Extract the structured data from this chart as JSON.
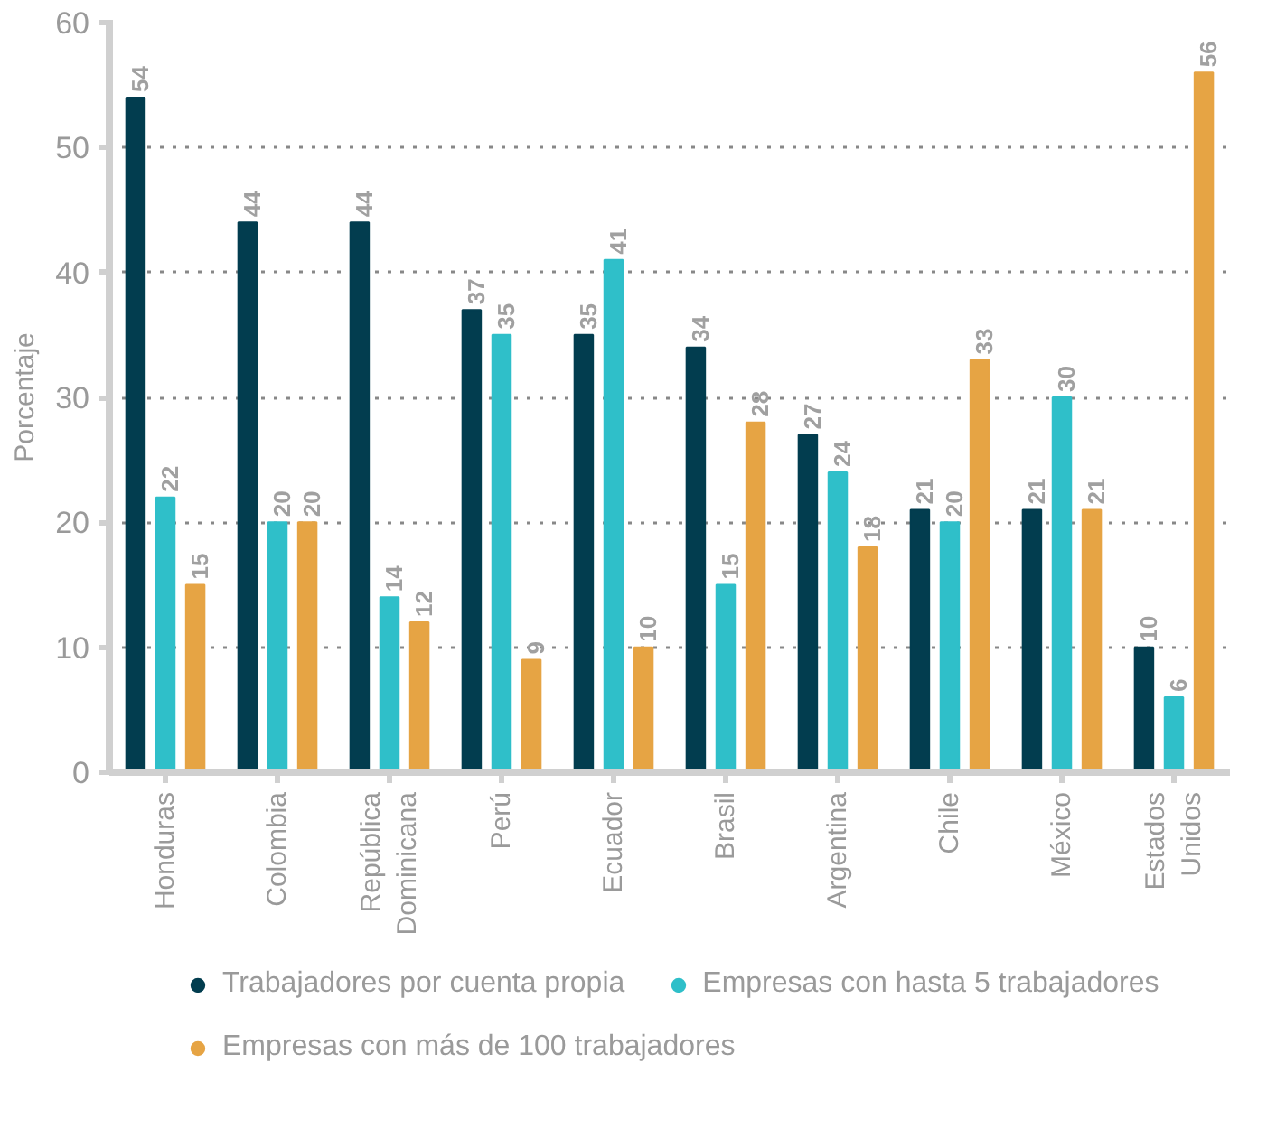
{
  "chart_data": {
    "type": "bar",
    "ylabel": "Porcentaje",
    "categories": [
      "Honduras",
      "Colombia",
      "República Dominicana",
      "Perú",
      "Ecuador",
      "Brasil",
      "Argentina",
      "Chile",
      "México",
      "Estados Unidos"
    ],
    "series": [
      {
        "name": "Trabajadores por cuenta propia",
        "color": "#023d4f",
        "values": [
          54,
          44,
          44,
          37,
          35,
          34,
          27,
          21,
          21,
          10
        ]
      },
      {
        "name": "Empresas con hasta 5 trabajadores",
        "color": "#2fbfc9",
        "values": [
          22,
          20,
          14,
          35,
          41,
          15,
          24,
          20,
          30,
          6
        ]
      },
      {
        "name": "Empresas con más de 100 trabajadores",
        "color": "#e6a444",
        "values": [
          15,
          20,
          12,
          9,
          10,
          28,
          18,
          33,
          21,
          56
        ]
      }
    ],
    "ylim": [
      0,
      60
    ],
    "yticks": [
      0,
      10,
      20,
      30,
      40,
      50,
      60
    ],
    "grid": "y",
    "legend": "bottom",
    "marker": "circle",
    "data_labels": true
  }
}
